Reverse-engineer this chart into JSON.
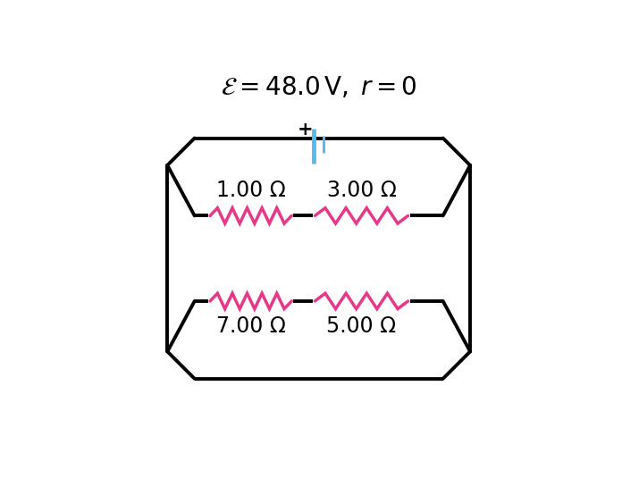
{
  "title": "$\\mathcal{E} = 48.0\\,\\mathrm{V},\\; r = 0$",
  "title_fontsize": 20,
  "title_color": "#000000",
  "background_color": "#ffffff",
  "circuit_color": "#000000",
  "resistor_color": "#e8388a",
  "battery_color": "#55bbee",
  "plus_color": "#000000",
  "label_top_left": "1.00 Ω",
  "label_top_right": "3.00 Ω",
  "label_bot_left": "7.00 Ω",
  "label_bot_right": "5.00 Ω",
  "label_fontsize": 17
}
